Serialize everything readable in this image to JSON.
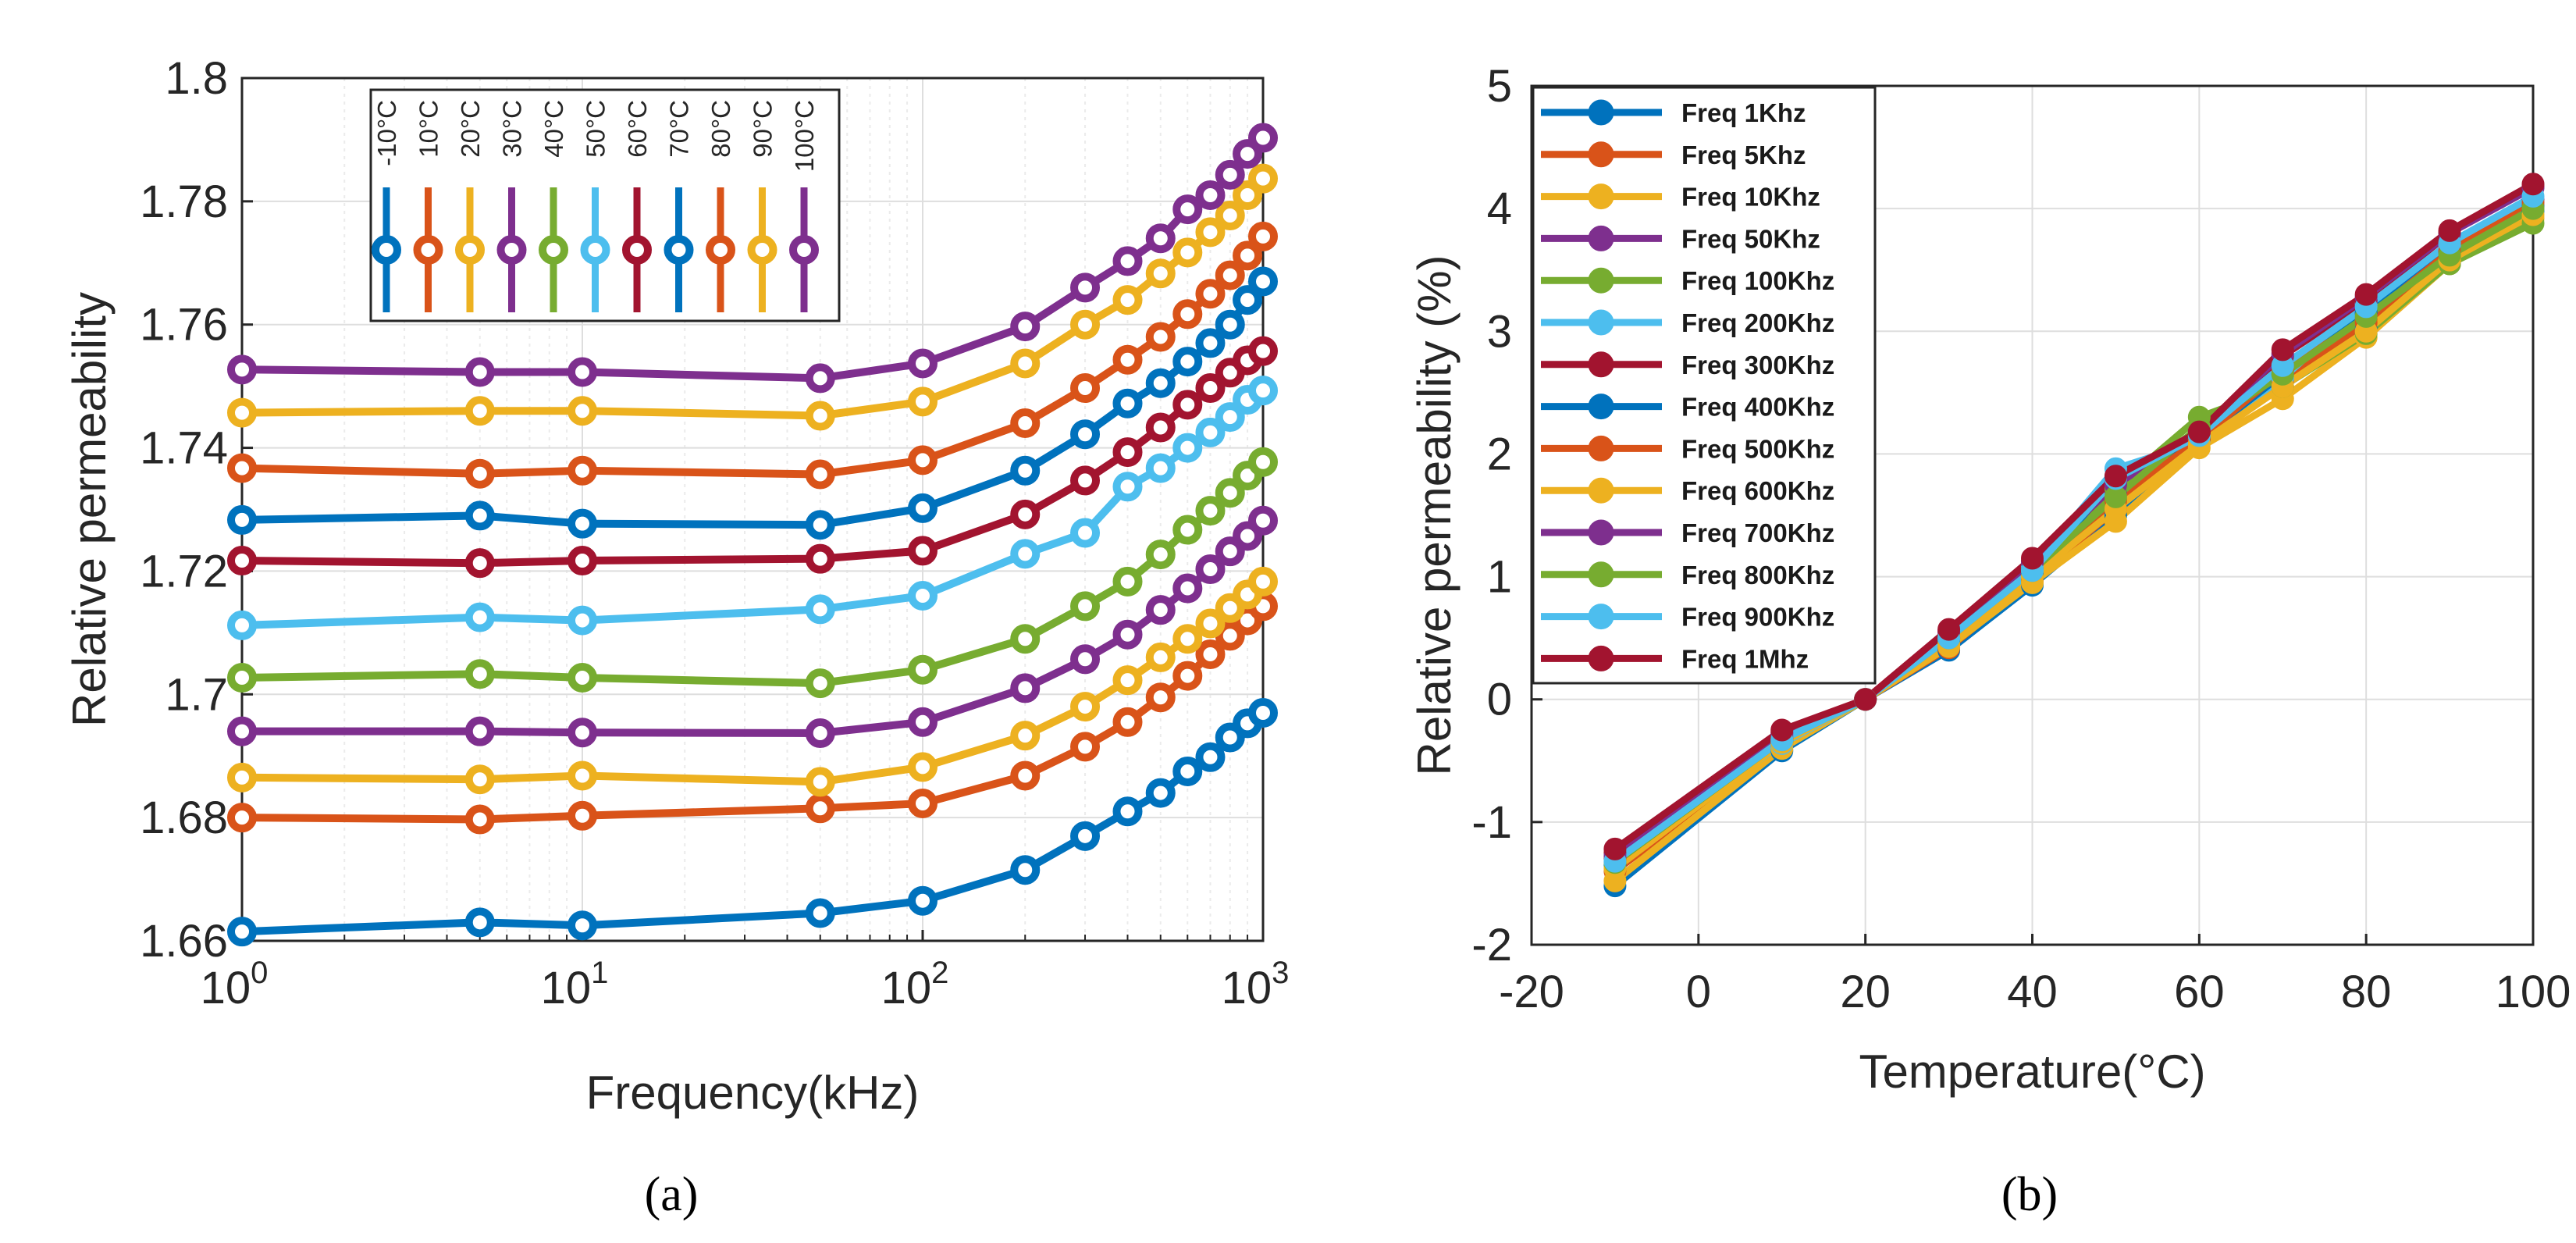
{
  "chart_data": [
    {
      "type": "line",
      "panel_label": "(a)",
      "xlabel": "Frequency(kHz)",
      "ylabel": "Relative permeability",
      "xscale": "log",
      "xlim": [
        1,
        1000
      ],
      "ylim": [
        1.66,
        1.8
      ],
      "x_tick_labels": [
        {
          "base": "10",
          "exp": "0"
        },
        {
          "base": "10",
          "exp": "1"
        },
        {
          "base": "10",
          "exp": "2"
        },
        {
          "base": "10",
          "exp": "3"
        }
      ],
      "y_ticks": [
        "1.66",
        "1.68",
        "1.7",
        "1.72",
        "1.74",
        "1.76",
        "1.78",
        "1.8"
      ],
      "grid": true,
      "legend_position": "top-center, horizontal with rotated labels",
      "x": [
        1,
        5,
        10,
        50,
        100,
        200,
        300,
        400,
        500,
        600,
        700,
        800,
        900,
        1000
      ],
      "series": [
        {
          "name": "-10°C",
          "color": "#0072BD",
          "values": [
            1.6615,
            1.663,
            1.6625,
            1.6645,
            1.6665,
            1.6715,
            1.677,
            1.681,
            1.684,
            1.6875,
            1.6898,
            1.693,
            1.6953,
            1.697
          ]
        },
        {
          "name": "10°C",
          "color": "#D95319",
          "values": [
            1.68,
            1.6797,
            1.6803,
            1.6815,
            1.6823,
            1.6868,
            1.6915,
            1.6955,
            1.6995,
            1.703,
            1.7065,
            1.7095,
            1.712,
            1.7143
          ]
        },
        {
          "name": "20°C",
          "color": "#EDB120",
          "values": [
            1.6865,
            1.6862,
            1.6868,
            1.6858,
            1.6882,
            1.6933,
            1.698,
            1.7023,
            1.706,
            1.709,
            1.7115,
            1.714,
            1.7162,
            1.7183
          ]
        },
        {
          "name": "30°C",
          "color": "#7E2F8E",
          "values": [
            1.694,
            1.694,
            1.6938,
            1.6937,
            1.6955,
            1.701,
            1.7057,
            1.7097,
            1.7137,
            1.7172,
            1.7203,
            1.7232,
            1.7257,
            1.7282
          ]
        },
        {
          "name": "40°C",
          "color": "#77AC30",
          "values": [
            1.7027,
            1.7033,
            1.7027,
            1.7018,
            1.704,
            1.709,
            1.7143,
            1.7183,
            1.7227,
            1.7267,
            1.7298,
            1.7327,
            1.7355,
            1.7377
          ]
        },
        {
          "name": "50°C",
          "color": "#4DBEEE",
          "values": [
            1.7112,
            1.7125,
            1.712,
            1.7138,
            1.716,
            1.7228,
            1.7262,
            1.7337,
            1.7367,
            1.74,
            1.7425,
            1.745,
            1.7478,
            1.7493
          ]
        },
        {
          "name": "60°C",
          "color": "#A2142F",
          "values": [
            1.7217,
            1.7213,
            1.7217,
            1.722,
            1.7233,
            1.7292,
            1.7347,
            1.7393,
            1.7433,
            1.747,
            1.7497,
            1.7522,
            1.7542,
            1.7557
          ]
        },
        {
          "name": "70°C",
          "color": "#0072BD",
          "values": [
            1.7283,
            1.729,
            1.7277,
            1.7275,
            1.7302,
            1.7363,
            1.7422,
            1.7472,
            1.7505,
            1.754,
            1.757,
            1.76,
            1.764,
            1.767
          ]
        },
        {
          "name": "80°C",
          "color": "#D95319",
          "values": [
            1.7367,
            1.7358,
            1.7363,
            1.7357,
            1.738,
            1.744,
            1.7497,
            1.7543,
            1.758,
            1.7617,
            1.765,
            1.768,
            1.7712,
            1.7743
          ]
        },
        {
          "name": "90°C",
          "color": "#EDB120",
          "values": [
            1.7457,
            1.746,
            1.746,
            1.7452,
            1.7475,
            1.7537,
            1.76,
            1.764,
            1.7683,
            1.7717,
            1.775,
            1.7777,
            1.781,
            1.7837
          ]
        },
        {
          "name": "100°C",
          "color": "#7E2F8E",
          "values": [
            1.7527,
            1.7523,
            1.7523,
            1.7513,
            1.7537,
            1.7597,
            1.766,
            1.7703,
            1.774,
            1.7787,
            1.781,
            1.7843,
            1.7877,
            1.7903
          ]
        }
      ]
    },
    {
      "type": "line",
      "panel_label": "(b)",
      "xlabel": "Temperature(°C)",
      "ylabel": "Relative permeability (%)",
      "xlim": [
        -20,
        100
      ],
      "ylim": [
        -2,
        5
      ],
      "x_ticks": [
        "-20",
        "0",
        "20",
        "40",
        "60",
        "80",
        "100"
      ],
      "y_ticks": [
        "-2",
        "-1",
        "0",
        "1",
        "2",
        "3",
        "4",
        "5"
      ],
      "grid": true,
      "legend_position": "top-left",
      "x": [
        -10,
        10,
        20,
        30,
        40,
        50,
        60,
        70,
        80,
        90,
        100
      ],
      "series": [
        {
          "name": "Freq 1Khz",
          "color": "#0072BD",
          "values": [
            -1.52,
            -0.42,
            0,
            0.4,
            0.93,
            1.5,
            2.12,
            2.55,
            3.02,
            3.55,
            3.98
          ]
        },
        {
          "name": "Freq 5Khz",
          "color": "#D95319",
          "values": [
            -1.4,
            -0.38,
            0,
            0.42,
            0.97,
            1.55,
            2.15,
            2.6,
            3.07,
            3.6,
            4.03
          ]
        },
        {
          "name": "Freq 10Khz",
          "color": "#EDB120",
          "values": [
            -1.48,
            -0.4,
            0,
            0.43,
            0.95,
            1.45,
            2.05,
            2.45,
            2.95,
            3.55,
            3.92
          ]
        },
        {
          "name": "Freq 50Khz",
          "color": "#7E2F8E",
          "values": [
            -1.3,
            -0.32,
            0,
            0.5,
            1.05,
            1.7,
            2.2,
            2.72,
            3.15,
            3.7,
            4.07
          ]
        },
        {
          "name": "Freq 100Khz",
          "color": "#77AC30",
          "values": [
            -1.3,
            -0.35,
            0,
            0.47,
            1.05,
            1.72,
            2.3,
            2.55,
            2.98,
            3.55,
            3.88
          ]
        },
        {
          "name": "Freq 200Khz",
          "color": "#4DBEEE",
          "values": [
            -1.32,
            -0.36,
            0,
            0.48,
            1.08,
            1.88,
            2.1,
            2.62,
            3.22,
            3.7,
            4.05
          ]
        },
        {
          "name": "Freq 300Khz",
          "color": "#A2142F",
          "values": [
            -1.25,
            -0.27,
            0,
            0.55,
            1.12,
            1.78,
            2.18,
            2.8,
            3.25,
            3.8,
            4.18
          ]
        },
        {
          "name": "Freq 400Khz",
          "color": "#0072BD",
          "values": [
            -1.35,
            -0.34,
            0,
            0.47,
            1.02,
            1.8,
            2.12,
            2.65,
            3.15,
            3.65,
            4.02
          ]
        },
        {
          "name": "Freq 500Khz",
          "color": "#D95319",
          "values": [
            -1.3,
            -0.3,
            0,
            0.5,
            1.05,
            1.62,
            2.12,
            2.68,
            3.1,
            3.65,
            4.05
          ]
        },
        {
          "name": "Freq 600Khz",
          "color": "#EDB120",
          "values": [
            -1.38,
            -0.35,
            0,
            0.45,
            1.0,
            1.55,
            2.08,
            2.55,
            3.0,
            3.58,
            3.95
          ]
        },
        {
          "name": "Freq 700Khz",
          "color": "#7E2F8E",
          "values": [
            -1.28,
            -0.28,
            0,
            0.55,
            1.12,
            1.75,
            2.17,
            2.82,
            3.28,
            3.8,
            4.17
          ]
        },
        {
          "name": "Freq 800Khz",
          "color": "#77AC30",
          "values": [
            -1.33,
            -0.33,
            0,
            0.5,
            1.05,
            1.65,
            2.22,
            2.65,
            3.12,
            3.62,
            4.0
          ]
        },
        {
          "name": "Freq 900Khz",
          "color": "#4DBEEE",
          "values": [
            -1.32,
            -0.33,
            0,
            0.5,
            1.05,
            1.8,
            2.15,
            2.72,
            3.2,
            3.72,
            4.1
          ]
        },
        {
          "name": "Freq 1Mhz",
          "color": "#A2142F",
          "values": [
            -1.22,
            -0.25,
            0,
            0.57,
            1.15,
            1.82,
            2.18,
            2.85,
            3.3,
            3.82,
            4.2
          ]
        }
      ]
    }
  ]
}
